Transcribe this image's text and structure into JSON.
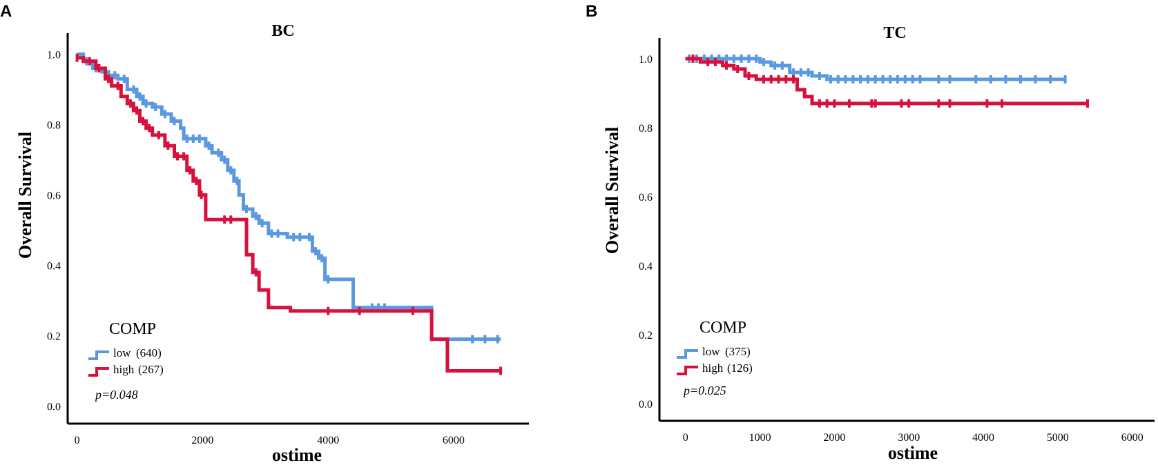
{
  "chart_data": [
    {
      "panel": "A",
      "type": "line",
      "title": "BC",
      "xlabel": "ostime",
      "ylabel": "Overall Survival",
      "xlim": [
        -150,
        7200
      ],
      "ylim": [
        -0.05,
        1.06
      ],
      "xticks": [
        0,
        2000,
        4000,
        6000
      ],
      "xtick_labels": [
        "0",
        "2000",
        "4000",
        "6000"
      ],
      "yticks": [
        0.0,
        0.2,
        0.4,
        0.6,
        0.8,
        1.0
      ],
      "ytick_labels": [
        "0.0",
        "0.2",
        "0.4",
        "0.6",
        "0.8",
        "1.0"
      ],
      "legend_title": "COMP",
      "p_value": "p=0.048",
      "series": [
        {
          "name": "low",
          "count_label": "(640)",
          "color": "#5a98e0",
          "step_x": [
            0,
            100,
            250,
            400,
            500,
            650,
            800,
            950,
            1050,
            1200,
            1350,
            1500,
            1650,
            1700,
            2050,
            2150,
            2300,
            2400,
            2500,
            2580,
            2650,
            2800,
            2900,
            3050,
            3350,
            3750,
            3850,
            3950,
            4400,
            5650,
            6750
          ],
          "step_y": [
            1.0,
            0.98,
            0.96,
            0.95,
            0.94,
            0.93,
            0.9,
            0.88,
            0.86,
            0.85,
            0.83,
            0.81,
            0.79,
            0.76,
            0.74,
            0.72,
            0.7,
            0.67,
            0.64,
            0.6,
            0.56,
            0.54,
            0.52,
            0.49,
            0.48,
            0.44,
            0.42,
            0.36,
            0.28,
            0.19,
            0.19
          ],
          "censor_x": [
            150,
            300,
            450,
            600,
            750,
            900,
            1000,
            1100,
            1250,
            1400,
            1550,
            1750,
            1850,
            1950,
            2100,
            2250,
            2350,
            2450,
            2550,
            2700,
            2850,
            2950,
            3100,
            3200,
            3450,
            3550,
            3700,
            3800,
            3900,
            4000,
            4700,
            4800,
            4900,
            6300,
            6500,
            6700
          ]
        },
        {
          "name": "high",
          "count_label": "(267)",
          "color": "#d8103c",
          "step_x": [
            0,
            100,
            300,
            450,
            550,
            700,
            800,
            900,
            1000,
            1100,
            1200,
            1400,
            1550,
            1750,
            1850,
            1950,
            2050,
            2700,
            2800,
            2900,
            3050,
            3400,
            5650,
            5900,
            6750
          ],
          "step_y": [
            0.99,
            0.98,
            0.96,
            0.93,
            0.91,
            0.88,
            0.86,
            0.84,
            0.81,
            0.79,
            0.77,
            0.74,
            0.71,
            0.67,
            0.64,
            0.6,
            0.53,
            0.43,
            0.38,
            0.33,
            0.28,
            0.27,
            0.19,
            0.1,
            0.1
          ],
          "censor_x": [
            0,
            200,
            350,
            500,
            650,
            850,
            950,
            1050,
            1150,
            1300,
            1450,
            1600,
            1700,
            1800,
            1900,
            1980,
            2350,
            2450,
            2850,
            4000,
            4500,
            5350,
            6750
          ]
        }
      ]
    },
    {
      "panel": "B",
      "type": "line",
      "title": "TC",
      "xlabel": "ostime",
      "ylabel": "Overall Survival",
      "xlim": [
        -350,
        6300
      ],
      "ylim": [
        -0.05,
        1.06
      ],
      "xticks": [
        0,
        1000,
        2000,
        3000,
        4000,
        5000,
        6000
      ],
      "xtick_labels": [
        "0",
        "1000",
        "2000",
        "3000",
        "4000",
        "5000",
        "6000"
      ],
      "yticks": [
        0.0,
        0.2,
        0.4,
        0.6,
        0.8,
        1.0
      ],
      "ytick_labels": [
        "0.0",
        "0.2",
        "0.4",
        "0.6",
        "0.8",
        "1.0"
      ],
      "legend_title": "COMP",
      "p_value": "p=0.025",
      "series": [
        {
          "name": "low",
          "count_label": "(375)",
          "color": "#5a98e0",
          "step_x": [
            0,
            1000,
            1150,
            1400,
            1700,
            1900,
            5100
          ],
          "step_y": [
            1.0,
            0.99,
            0.98,
            0.96,
            0.95,
            0.94,
            0.94
          ],
          "censor_x": [
            50,
            150,
            250,
            350,
            450,
            550,
            650,
            750,
            850,
            950,
            1050,
            1200,
            1300,
            1450,
            1550,
            1650,
            1800,
            1950,
            2050,
            2150,
            2250,
            2350,
            2450,
            2550,
            2650,
            2750,
            2850,
            2950,
            3050,
            3150,
            3400,
            3550,
            3900,
            4100,
            4300,
            4500,
            4700,
            4900,
            5100
          ]
        },
        {
          "name": "high",
          "count_label": "(126)",
          "color": "#d8103c",
          "step_x": [
            0,
            200,
            500,
            650,
            800,
            950,
            1500,
            1600,
            1700,
            5400
          ],
          "step_y": [
            1.0,
            0.99,
            0.98,
            0.97,
            0.95,
            0.94,
            0.91,
            0.89,
            0.87,
            0.87
          ],
          "censor_x": [
            100,
            300,
            400,
            550,
            700,
            850,
            1050,
            1150,
            1250,
            1350,
            1450,
            1800,
            1900,
            2000,
            2200,
            2500,
            2550,
            2900,
            3000,
            3400,
            3550,
            4050,
            4250,
            5400
          ]
        }
      ]
    }
  ]
}
